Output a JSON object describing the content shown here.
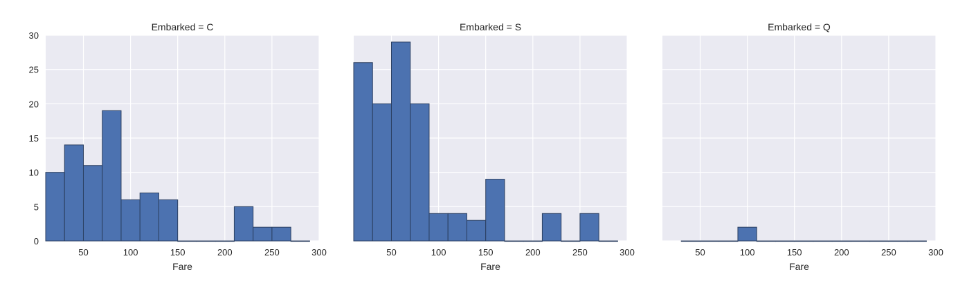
{
  "chart_data": [
    {
      "type": "bar",
      "title": "Embarked = C",
      "xlabel": "Fare",
      "ylabel": "",
      "xlim": [
        10,
        300
      ],
      "ylim": [
        0,
        30
      ],
      "xticks": [
        "50",
        "100",
        "150",
        "200",
        "250",
        "300"
      ],
      "yticks": [
        "0",
        "5",
        "10",
        "15",
        "20",
        "25",
        "30"
      ],
      "bin_edges": [
        10,
        30,
        50,
        70,
        90,
        110,
        130,
        150,
        170,
        190,
        210,
        230,
        250,
        270,
        290
      ],
      "values": [
        10,
        14,
        11,
        19,
        6,
        7,
        6,
        0,
        0,
        0,
        5,
        2,
        2,
        0
      ]
    },
    {
      "type": "bar",
      "title": "Embarked = S",
      "xlabel": "Fare",
      "ylabel": "",
      "xlim": [
        10,
        300
      ],
      "ylim": [
        0,
        30
      ],
      "xticks": [
        "50",
        "100",
        "150",
        "200",
        "250",
        "300"
      ],
      "yticks": [],
      "bin_edges": [
        10,
        30,
        50,
        70,
        90,
        110,
        130,
        150,
        170,
        190,
        210,
        230,
        250,
        270,
        290
      ],
      "values": [
        26,
        20,
        29,
        20,
        4,
        4,
        3,
        9,
        0,
        0,
        4,
        0,
        4,
        0
      ]
    },
    {
      "type": "bar",
      "title": "Embarked = Q",
      "xlabel": "Fare",
      "ylabel": "",
      "xlim": [
        10,
        300
      ],
      "ylim": [
        0,
        30
      ],
      "xticks": [
        "50",
        "100",
        "150",
        "200",
        "250",
        "300"
      ],
      "yticks": [],
      "bin_edges": [
        30,
        50,
        70,
        90,
        110,
        130,
        150,
        170,
        190,
        210,
        230,
        250,
        270,
        290
      ],
      "values": [
        0,
        0,
        0,
        2,
        0,
        0,
        0,
        0,
        0,
        0,
        0,
        0,
        0
      ]
    }
  ],
  "colors": {
    "bar_fill": "#4c72b0",
    "bar_edge": "#2b3f60",
    "panel_background": "#eaeaf2",
    "grid": "#ffffff"
  }
}
